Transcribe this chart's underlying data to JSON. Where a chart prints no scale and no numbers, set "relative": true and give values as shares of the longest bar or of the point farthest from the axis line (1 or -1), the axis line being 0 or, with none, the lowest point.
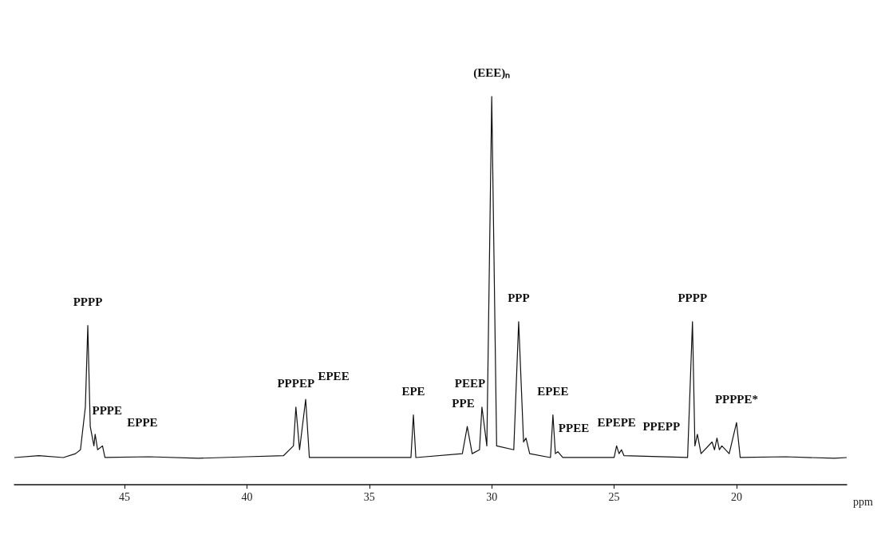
{
  "chart_data": {
    "type": "line",
    "relative": true,
    "xlabel": "ppm",
    "xlim": [
      49.5,
      15.5
    ],
    "xticks": [
      45,
      40,
      35,
      30,
      25,
      20
    ],
    "grid": false,
    "marker": "none",
    "line_style": "solid",
    "series": [
      {
        "color": "#111111",
        "x": [
          49.5,
          48.5,
          47.5,
          47.0,
          46.8,
          46.6,
          46.5,
          46.4,
          46.25,
          46.2,
          46.1,
          45.9,
          45.8,
          44,
          42,
          40,
          38.5,
          38.1,
          38.0,
          37.85,
          37.6,
          37.45,
          35,
          33.3,
          33.2,
          33.1,
          31.2,
          31.0,
          30.8,
          30.5,
          30.4,
          30.2,
          30.0,
          29.8,
          29.1,
          28.9,
          28.7,
          28.6,
          28.45,
          27.6,
          27.5,
          27.4,
          27.3,
          27.1,
          25.0,
          24.9,
          24.8,
          24.7,
          24.6,
          22,
          21.8,
          21.7,
          21.6,
          21.45,
          21.0,
          20.9,
          20.8,
          20.7,
          20.6,
          20.3,
          20.0,
          19.85,
          18,
          16,
          15.5
        ],
        "values": [
          0.07,
          0.075,
          0.07,
          0.08,
          0.09,
          0.2,
          0.41,
          0.15,
          0.1,
          0.13,
          0.09,
          0.1,
          0.07,
          0.072,
          0.068,
          0.072,
          0.075,
          0.1,
          0.2,
          0.09,
          0.22,
          0.07,
          0.07,
          0.07,
          0.18,
          0.07,
          0.08,
          0.15,
          0.08,
          0.09,
          0.2,
          0.1,
          1,
          0.1,
          0.09,
          0.42,
          0.11,
          0.12,
          0.08,
          0.07,
          0.18,
          0.08,
          0.085,
          0.07,
          0.07,
          0.1,
          0.08,
          0.09,
          0.075,
          0.07,
          0.42,
          0.1,
          0.13,
          0.08,
          0.11,
          0.09,
          0.12,
          0.09,
          0.1,
          0.08,
          0.16,
          0.07,
          0.072,
          0.068,
          0.07
        ]
      }
    ],
    "annotations": [
      {
        "text": "PPPP",
        "x": 46.5,
        "y": 0.41
      },
      {
        "text": "PPPE",
        "x": 46.2,
        "y": 0.13
      },
      {
        "text": "EPPE",
        "x": 45.9,
        "y": 0.1
      },
      {
        "text": "PPPEP",
        "x": 38.0,
        "y": 0.2
      },
      {
        "text": "EPEE",
        "x": 37.6,
        "y": 0.22
      },
      {
        "text": "EPE",
        "x": 33.2,
        "y": 0.18
      },
      {
        "text": "PPE",
        "x": 31.0,
        "y": 0.15
      },
      {
        "text": "PEEP",
        "x": 30.4,
        "y": 0.2
      },
      {
        "text": "(EEE)ₙ",
        "x": 30.0,
        "y": 1
      },
      {
        "text": "PPP",
        "x": 28.9,
        "y": 0.42
      },
      {
        "text": "EPEE",
        "x": 27.5,
        "y": 0.18
      },
      {
        "text": "PPEE",
        "x": 27.3,
        "y": 0.085
      },
      {
        "text": "EPEPE",
        "x": 24.9,
        "y": 0.1
      },
      {
        "text": "PPEPP",
        "x": 24.7,
        "y": 0.09
      },
      {
        "text": "PPPP",
        "x": 21.8,
        "y": 0.42
      },
      {
        "text": "PPPPE*",
        "x": 20.0,
        "y": 0.16
      }
    ]
  }
}
